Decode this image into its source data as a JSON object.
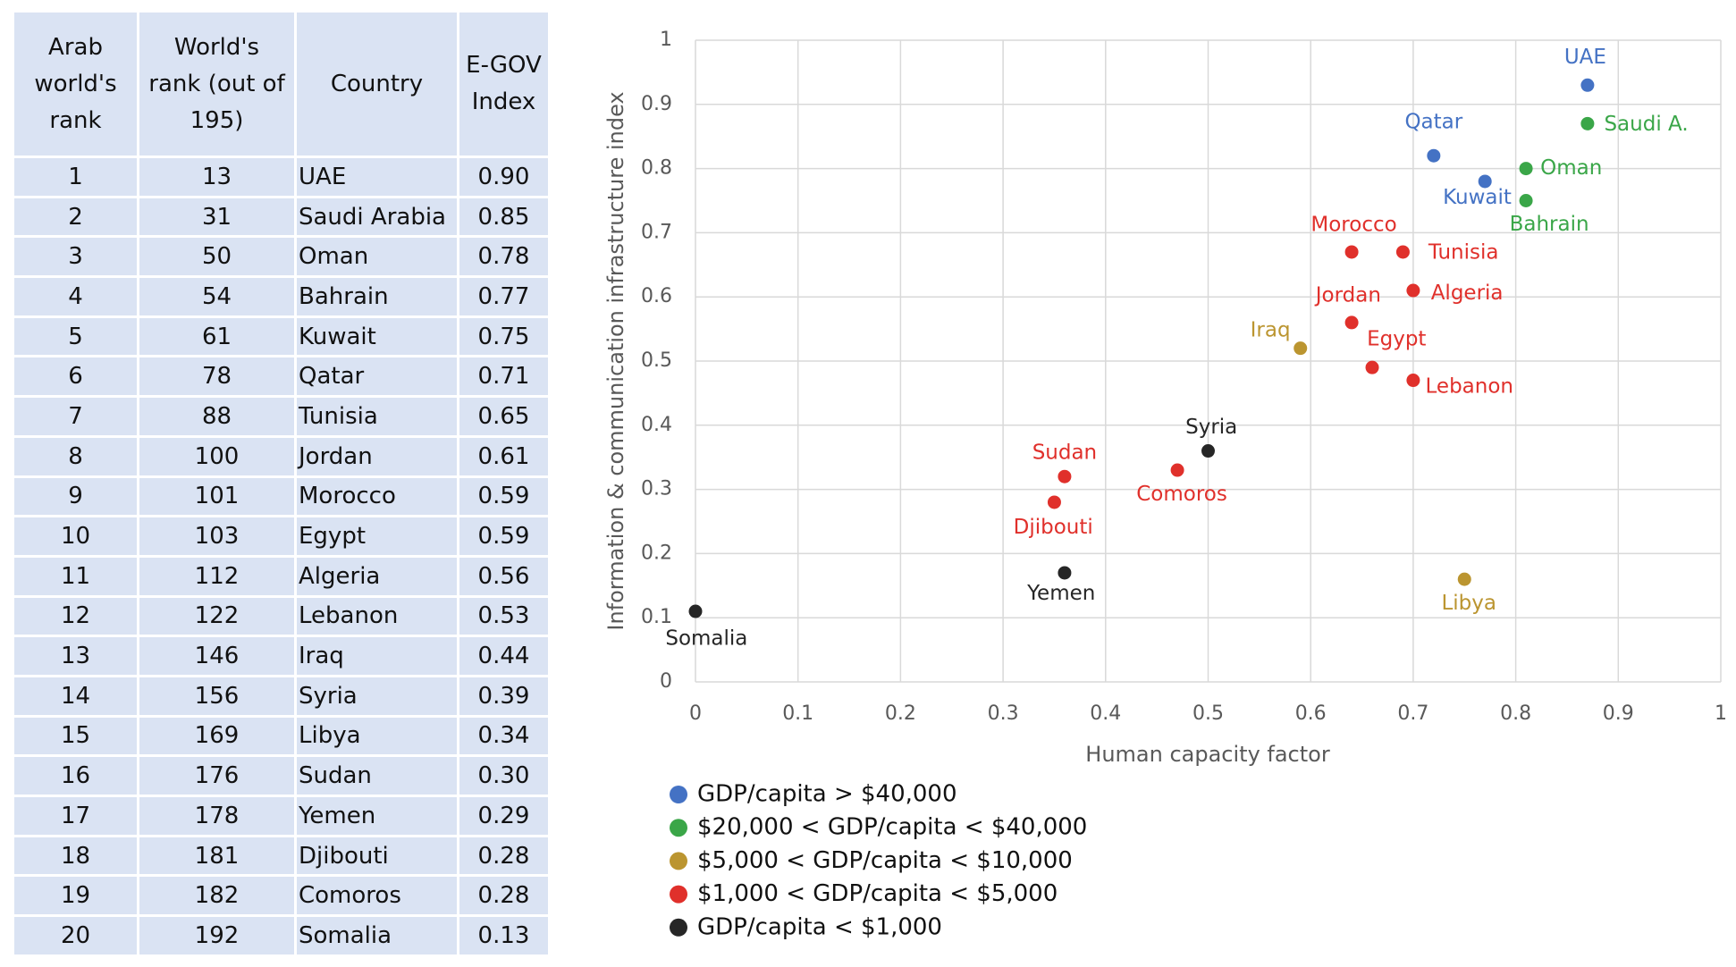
{
  "table": {
    "header": [
      "Arab world's rank",
      "World's rank (out of 195)",
      "Country",
      "E-GOV Index"
    ],
    "rows": [
      [
        "1",
        "13",
        "UAE",
        "0.90"
      ],
      [
        "2",
        "31",
        "Saudi Arabia",
        "0.85"
      ],
      [
        "3",
        "50",
        "Oman",
        "0.78"
      ],
      [
        "4",
        "54",
        "Bahrain",
        "0.77"
      ],
      [
        "5",
        "61",
        "Kuwait",
        "0.75"
      ],
      [
        "6",
        "78",
        "Qatar",
        "0.71"
      ],
      [
        "7",
        "88",
        "Tunisia",
        "0.65"
      ],
      [
        "8",
        "100",
        "Jordan",
        "0.61"
      ],
      [
        "9",
        "101",
        "Morocco",
        "0.59"
      ],
      [
        "10",
        "103",
        "Egypt",
        "0.59"
      ],
      [
        "11",
        "112",
        "Algeria",
        "0.56"
      ],
      [
        "12",
        "122",
        "Lebanon",
        "0.53"
      ],
      [
        "13",
        "146",
        "Iraq",
        "0.44"
      ],
      [
        "14",
        "156",
        "Syria",
        "0.39"
      ],
      [
        "15",
        "169",
        "Libya",
        "0.34"
      ],
      [
        "16",
        "176",
        "Sudan",
        "0.30"
      ],
      [
        "17",
        "178",
        "Yemen",
        "0.29"
      ],
      [
        "18",
        "181",
        "Djibouti",
        "0.28"
      ],
      [
        "19",
        "182",
        "Comoros",
        "0.28"
      ],
      [
        "20",
        "192",
        "Somalia",
        "0.13"
      ]
    ]
  },
  "chart_data": {
    "type": "scatter",
    "x_label": "Human capacity factor",
    "y_label": "Information & communication infrastructure index",
    "xlim": [
      0,
      1
    ],
    "ylim": [
      0,
      1
    ],
    "xticks": [
      0,
      0.1,
      0.2,
      0.3,
      0.4,
      0.5,
      0.6,
      0.7,
      0.8,
      0.9,
      1
    ],
    "yticks": [
      0,
      0.1,
      0.2,
      0.3,
      0.4,
      0.5,
      0.6,
      0.7,
      0.8,
      0.9,
      1
    ],
    "grid": true,
    "series": [
      {
        "name": "GDP/capita > $40,000",
        "color": "#4472c4",
        "labels": [
          "UAE",
          "Qatar",
          "Kuwait"
        ],
        "x": [
          0.87,
          0.72,
          0.77
        ],
        "values": [
          0.93,
          0.82,
          0.78
        ]
      },
      {
        "name": "$20,000 < GDP/capita < $40,000",
        "color": "#3aa648",
        "labels": [
          "Saudi A.",
          "Oman",
          "Bahrain"
        ],
        "x": [
          0.87,
          0.81,
          0.81
        ],
        "values": [
          0.87,
          0.8,
          0.75
        ]
      },
      {
        "name": "$5,000 < GDP/capita < $10,000",
        "color": "#bb9530",
        "labels": [
          "Iraq",
          "Libya"
        ],
        "x": [
          0.59,
          0.75
        ],
        "values": [
          0.52,
          0.16
        ]
      },
      {
        "name": "$1,000 < GDP/capita < $5,000",
        "color": "#e0302b",
        "labels": [
          "Morocco",
          "Tunisia",
          "Algeria",
          "Jordan",
          "Egypt",
          "Lebanon",
          "Sudan",
          "Comoros",
          "Djibouti"
        ],
        "x": [
          0.64,
          0.69,
          0.7,
          0.64,
          0.66,
          0.7,
          0.36,
          0.47,
          0.35
        ],
        "values": [
          0.67,
          0.67,
          0.61,
          0.56,
          0.49,
          0.47,
          0.32,
          0.33,
          0.28
        ]
      },
      {
        "name": "GDP/capita < $1,000",
        "color": "#262626",
        "labels": [
          "Syria",
          "Yemen",
          "Somalia"
        ],
        "x": [
          0.5,
          0.36,
          0
        ],
        "values": [
          0.36,
          0.17,
          0.11
        ]
      }
    ]
  }
}
